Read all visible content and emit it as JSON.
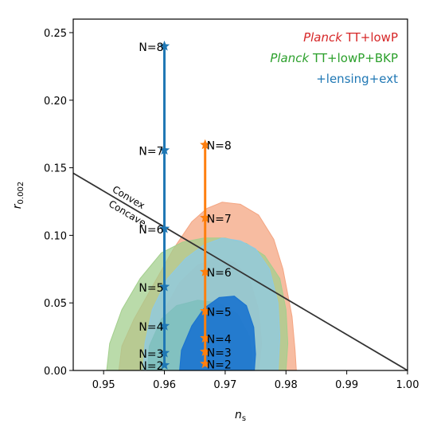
{
  "chart_data": {
    "type": "scatter",
    "xlabel_main": "n",
    "xlabel_sub": "s",
    "ylabel_main": "r",
    "ylabel_sub": "0.002",
    "xlim": [
      0.945,
      1.0
    ],
    "ylim": [
      0.0,
      0.26
    ],
    "xticks": [
      0.95,
      0.96,
      0.97,
      0.98,
      0.99,
      1.0
    ],
    "xtick_labels": [
      "0.95",
      "0.96",
      "0.97",
      "0.98",
      "0.99",
      "1.00"
    ],
    "yticks": [
      0.0,
      0.05,
      0.1,
      0.15,
      0.2,
      0.25
    ],
    "ytick_labels": [
      "0.00",
      "0.05",
      "0.10",
      "0.15",
      "0.20",
      "0.25"
    ],
    "grid": false,
    "legend": {
      "placement": "top-right",
      "entries": [
        {
          "italic": "Planck",
          "text": " TT+lowP",
          "color": "#d62728"
        },
        {
          "italic": "Planck",
          "text": " TT+lowP+BKP",
          "color": "#2ca02c"
        },
        {
          "italic": "",
          "text": "+lensing+ext",
          "color": "#1f77b4"
        }
      ]
    },
    "contours": [
      {
        "name_ref": "Planck TT+lowP",
        "level": "95%",
        "color": "#f4a582",
        "points": [
          [
            0.9525,
            0
          ],
          [
            0.953,
            0.018
          ],
          [
            0.955,
            0.038
          ],
          [
            0.958,
            0.062
          ],
          [
            0.9615,
            0.09
          ],
          [
            0.9645,
            0.11
          ],
          [
            0.967,
            0.12
          ],
          [
            0.9695,
            0.1245
          ],
          [
            0.9725,
            0.123
          ],
          [
            0.9755,
            0.115
          ],
          [
            0.978,
            0.097
          ],
          [
            0.9795,
            0.075
          ],
          [
            0.981,
            0.04
          ],
          [
            0.9815,
            0.015
          ],
          [
            0.9817,
            0
          ]
        ]
      },
      {
        "name_ref": "Planck TT+lowP",
        "level": "68%",
        "color": "#f08c6e",
        "points": [
          [
            0.9583,
            0
          ],
          [
            0.9585,
            0.02
          ],
          [
            0.96,
            0.045
          ],
          [
            0.9625,
            0.065
          ],
          [
            0.9655,
            0.078
          ],
          [
            0.9685,
            0.083
          ],
          [
            0.9715,
            0.08
          ],
          [
            0.974,
            0.068
          ],
          [
            0.9755,
            0.045
          ],
          [
            0.976,
            0.02
          ],
          [
            0.9755,
            0
          ]
        ]
      },
      {
        "name_ref": "Planck TT+lowP+BKP",
        "level": "95%",
        "color": "#a3cf8d",
        "points": [
          [
            0.9505,
            0
          ],
          [
            0.951,
            0.02
          ],
          [
            0.953,
            0.045
          ],
          [
            0.956,
            0.068
          ],
          [
            0.9595,
            0.087
          ],
          [
            0.963,
            0.095
          ],
          [
            0.9665,
            0.098
          ],
          [
            0.97,
            0.098
          ],
          [
            0.9735,
            0.094
          ],
          [
            0.9765,
            0.085
          ],
          [
            0.979,
            0.068
          ],
          [
            0.98,
            0.045
          ],
          [
            0.9803,
            0.02
          ],
          [
            0.98,
            0
          ]
        ]
      },
      {
        "name_ref": "Planck TT+lowP+BKP",
        "level": "68%",
        "color": "#59a449",
        "points": [
          [
            0.9572,
            0
          ],
          [
            0.9575,
            0.018
          ],
          [
            0.9595,
            0.038
          ],
          [
            0.962,
            0.048
          ],
          [
            0.9655,
            0.052
          ],
          [
            0.969,
            0.05
          ],
          [
            0.972,
            0.042
          ],
          [
            0.974,
            0.025
          ],
          [
            0.9745,
            0.008
          ],
          [
            0.9743,
            0
          ]
        ]
      },
      {
        "name_ref": "+lensing+ext",
        "level": "95%",
        "color": "#8ecae6",
        "points": [
          [
            0.9565,
            0
          ],
          [
            0.9568,
            0.02
          ],
          [
            0.958,
            0.045
          ],
          [
            0.9605,
            0.068
          ],
          [
            0.9635,
            0.083
          ],
          [
            0.9665,
            0.093
          ],
          [
            0.9695,
            0.098
          ],
          [
            0.9725,
            0.096
          ],
          [
            0.975,
            0.09
          ],
          [
            0.9773,
            0.075
          ],
          [
            0.9787,
            0.05
          ],
          [
            0.979,
            0.025
          ],
          [
            0.9787,
            0
          ]
        ]
      },
      {
        "name_ref": "+lensing+ext",
        "level": "68%",
        "color": "#1a73cf",
        "points": [
          [
            0.9625,
            0
          ],
          [
            0.9628,
            0.015
          ],
          [
            0.9645,
            0.033
          ],
          [
            0.9665,
            0.046
          ],
          [
            0.969,
            0.054
          ],
          [
            0.9715,
            0.055
          ],
          [
            0.9735,
            0.048
          ],
          [
            0.9747,
            0.032
          ],
          [
            0.975,
            0.012
          ],
          [
            0.9748,
            0
          ]
        ]
      }
    ],
    "series": [
      {
        "color": "#1f77b4",
        "x": 0.96,
        "labels": [
          "N=2",
          "N=3",
          "N=4",
          "N=5",
          "N=6",
          "N=7",
          "N=8"
        ],
        "values": [
          0.004,
          0.013,
          0.033,
          0.062,
          0.105,
          0.163,
          0.24
        ]
      },
      {
        "color": "#ff7f0e",
        "x": 0.9667,
        "labels": [
          "N=2",
          "N=3",
          "N=4",
          "N=5",
          "N=6",
          "N=7",
          "N=8"
        ],
        "values": [
          0.005,
          0.014,
          0.024,
          0.044,
          0.073,
          0.113,
          0.167
        ]
      }
    ],
    "boundary_line": {
      "x": [
        0.945,
        1.0
      ],
      "y": [
        0.146,
        0.0
      ],
      "color": "#333333",
      "label_above": "Convex",
      "label_below": "Concave"
    }
  }
}
